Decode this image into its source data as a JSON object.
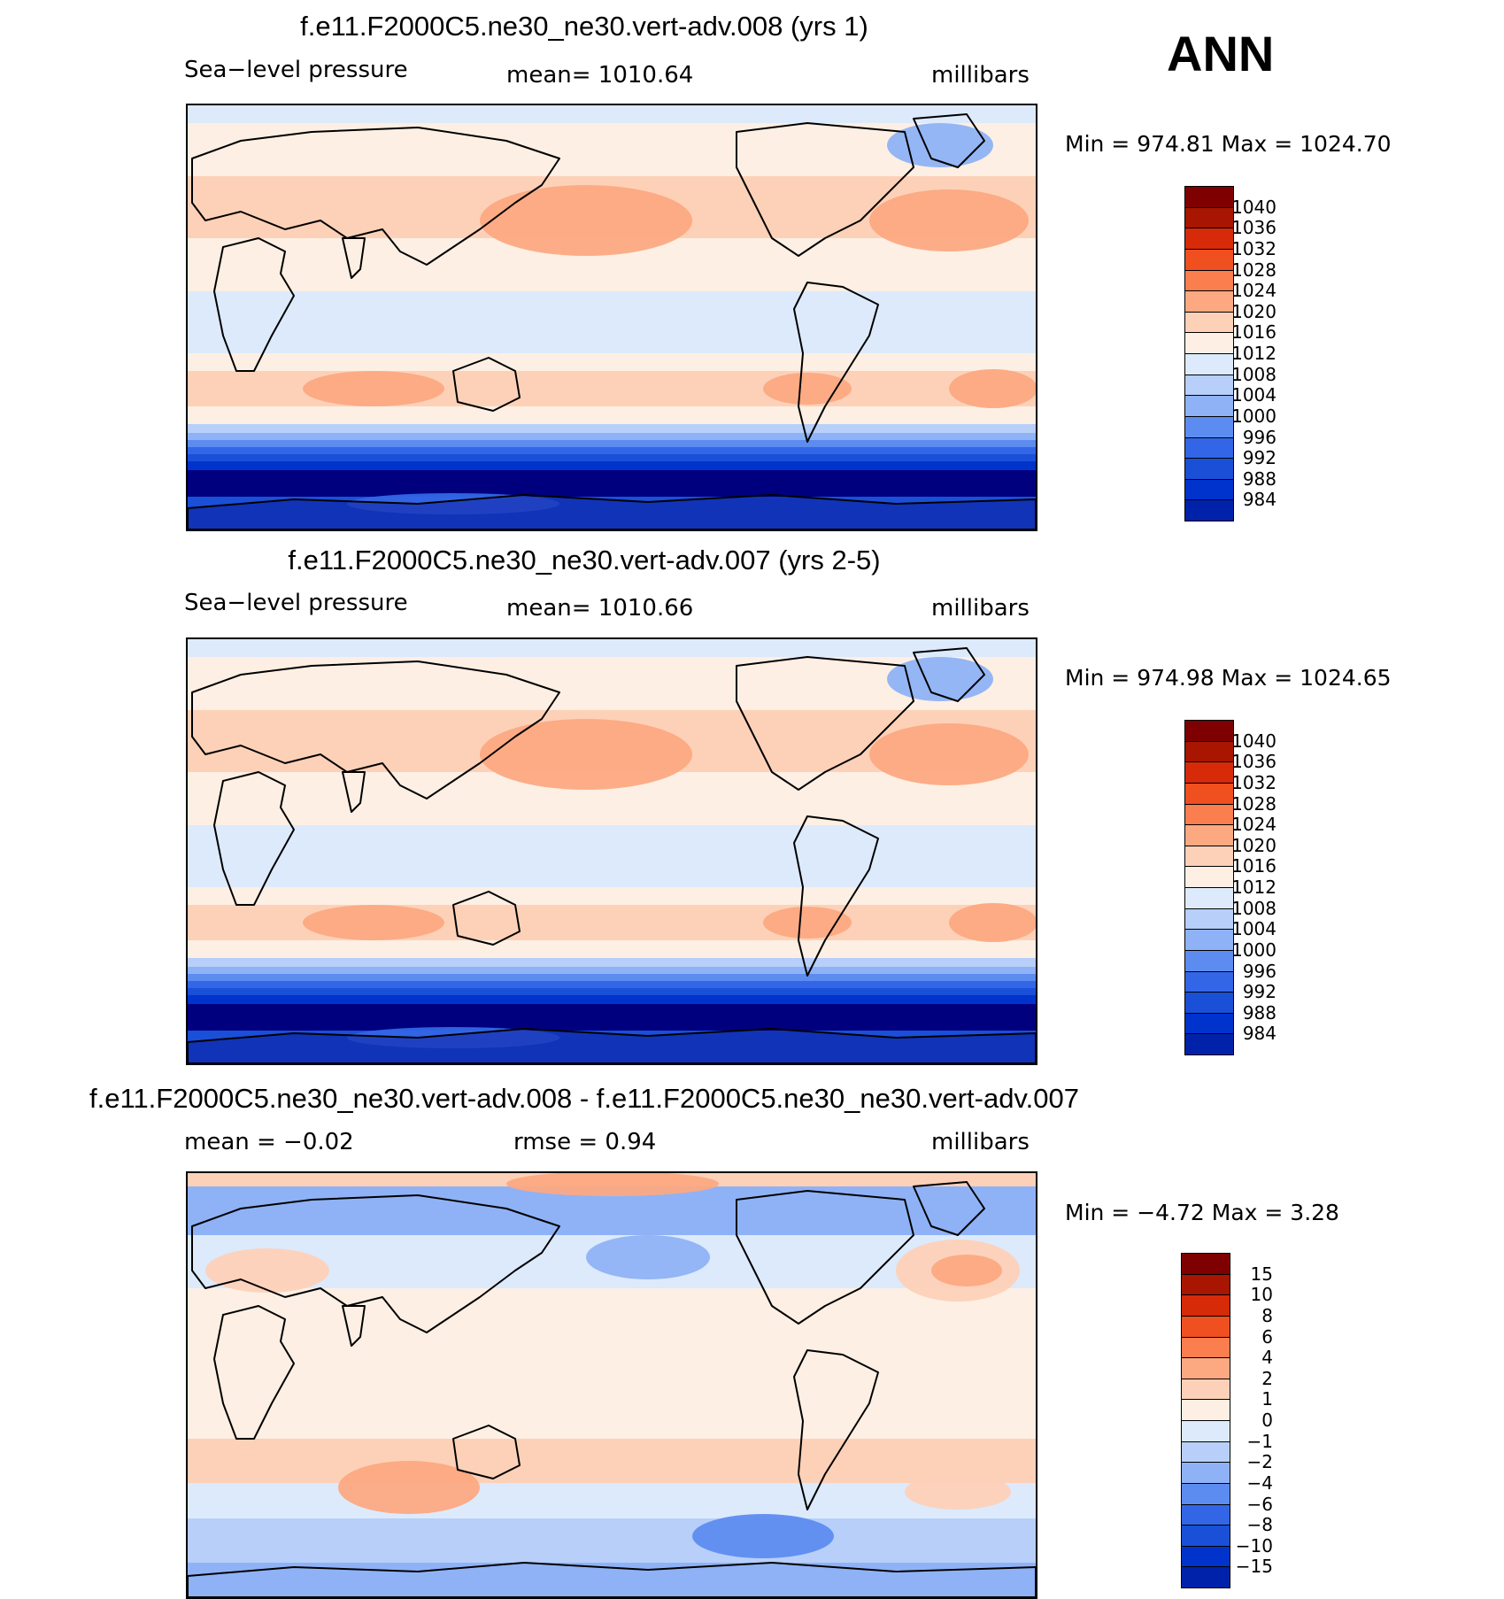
{
  "header": {
    "season": "ANN"
  },
  "colors": {
    "slp": [
      "#00007f",
      "#0022aa",
      "#0033cc",
      "#1a4fd8",
      "#3366e6",
      "#5d8cf0",
      "#8fb2f6",
      "#b7cff9",
      "#dceafc",
      "#fdefe3",
      "#fdd1b8",
      "#fca982",
      "#fa7e4e",
      "#f04f20",
      "#d62a08",
      "#a81500",
      "#7f0000"
    ],
    "diff": [
      "#00007f",
      "#0022aa",
      "#0033cc",
      "#1a4fd8",
      "#3366e6",
      "#5d8cf0",
      "#8fb2f6",
      "#b7cff9",
      "#dceafc",
      "#fdefe3",
      "#fdd1b8",
      "#fca982",
      "#fa7e4e",
      "#f04f20",
      "#d62a08",
      "#a81500",
      "#7f0000"
    ]
  },
  "panels": [
    {
      "title": "f.e11.F2000C5.ne30_ne30.vert-adv.008 (yrs 1)",
      "left_label": "Sea−level pressure",
      "center_label": "mean=  1010.64",
      "right_label": "millibars",
      "minmax": "Min  =  974.81  Max  =  1024.70",
      "colorbar_labels": [
        "1040",
        "1036",
        "1032",
        "1028",
        "1024",
        "1020",
        "1016",
        "1012",
        "1008",
        "1004",
        "1000",
        "996",
        "992",
        "988",
        "984"
      ]
    },
    {
      "title": "f.e11.F2000C5.ne30_ne30.vert-adv.007 (yrs 2-5)",
      "left_label": "Sea−level pressure",
      "center_label": "mean=  1010.66",
      "right_label": "millibars",
      "minmax": "Min  =  974.98  Max  =  1024.65",
      "colorbar_labels": [
        "1040",
        "1036",
        "1032",
        "1028",
        "1024",
        "1020",
        "1016",
        "1012",
        "1008",
        "1004",
        "1000",
        "996",
        "992",
        "988",
        "984"
      ]
    },
    {
      "title": "f.e11.F2000C5.ne30_ne30.vert-adv.008 - f.e11.F2000C5.ne30_ne30.vert-adv.007",
      "left_label": "mean  =    −0.02",
      "center_label": "rmse  =     0.94",
      "right_label": "millibars",
      "minmax": "Min  =    −4.72  Max  =      3.28",
      "colorbar_labels": [
        "15",
        "10",
        "8",
        "6",
        "4",
        "2",
        "1",
        "0",
        "−1",
        "−2",
        "−4",
        "−6",
        "−8",
        "−10",
        "−15"
      ]
    }
  ],
  "chart_data": [
    {
      "type": "heatmap",
      "title": "f.e11.F2000C5.ne30_ne30.vert-adv.008 (yrs 1)",
      "variable": "Sea-level pressure",
      "units": "millibars",
      "mean": 1010.64,
      "min": 974.81,
      "max": 1024.7,
      "contour_levels": [
        984,
        988,
        992,
        996,
        1000,
        1004,
        1008,
        1012,
        1016,
        1020,
        1024,
        1028,
        1032,
        1036,
        1040
      ]
    },
    {
      "type": "heatmap",
      "title": "f.e11.F2000C5.ne30_ne30.vert-adv.007 (yrs 2-5)",
      "variable": "Sea-level pressure",
      "units": "millibars",
      "mean": 1010.66,
      "min": 974.98,
      "max": 1024.65,
      "contour_levels": [
        984,
        988,
        992,
        996,
        1000,
        1004,
        1008,
        1012,
        1016,
        1020,
        1024,
        1028,
        1032,
        1036,
        1040
      ]
    },
    {
      "type": "heatmap",
      "title": "f.e11.F2000C5.ne30_ne30.vert-adv.008 - f.e11.F2000C5.ne30_ne30.vert-adv.007",
      "units": "millibars",
      "mean": -0.02,
      "rmse": 0.94,
      "min": -4.72,
      "max": 3.28,
      "contour_levels": [
        -15,
        -10,
        -8,
        -6,
        -4,
        -2,
        -1,
        0,
        1,
        2,
        4,
        6,
        8,
        10,
        15
      ]
    }
  ]
}
